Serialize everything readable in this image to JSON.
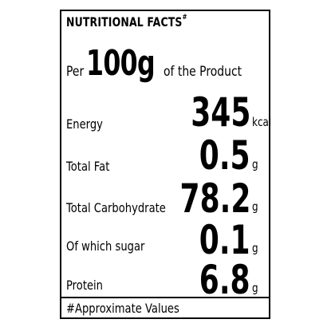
{
  "label": {
    "title": "NUTRITIONAL FACTS",
    "title_mark": "#",
    "per_prefix": "Per",
    "per_amount": "100g",
    "per_suffix": "of the Product",
    "rows": [
      {
        "name": "Energy",
        "value": "345",
        "unit": "kcal"
      },
      {
        "name": "Total Fat",
        "value": "0.5",
        "unit": "g"
      },
      {
        "name": "Total Carbohydrate",
        "value": "78.2",
        "unit": "g"
      },
      {
        "name": "Of which sugar",
        "value": "0.1",
        "unit": "g"
      },
      {
        "name": "Protein",
        "value": "6.8",
        "unit": "g"
      }
    ],
    "footer": "#Approximate Values",
    "border_color": "#000000",
    "background_color": "#ffffff"
  }
}
